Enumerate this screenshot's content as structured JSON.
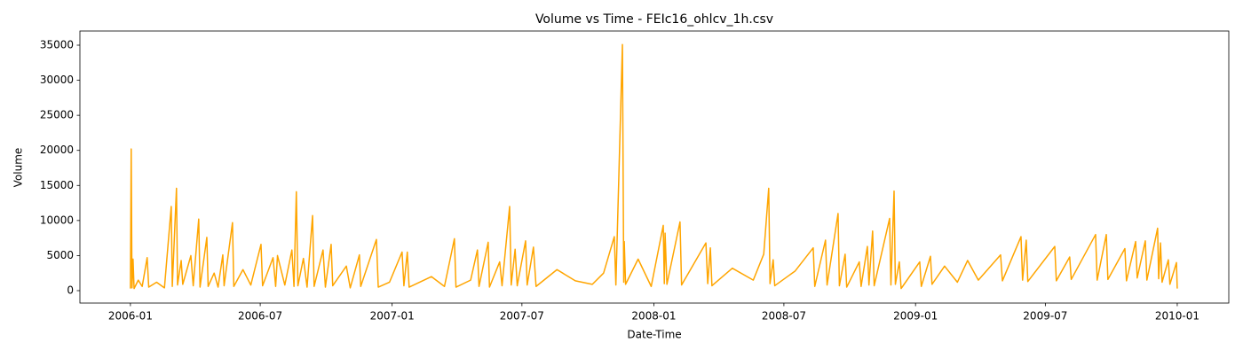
{
  "chart_data": {
    "type": "line",
    "title": "Volume vs Time - FEIc16_ohlcv_1h.csv",
    "xlabel": "Date-Time",
    "ylabel": "Volume",
    "x": [
      2006.0,
      2006.003,
      2006.006,
      2006.01,
      2006.014,
      2006.03,
      2006.045,
      2006.064,
      2006.07,
      2006.1,
      2006.13,
      2006.156,
      2006.16,
      2006.176,
      2006.18,
      2006.194,
      2006.2,
      2006.231,
      2006.24,
      2006.261,
      2006.266,
      2006.292,
      2006.297,
      2006.32,
      2006.335,
      2006.353,
      2006.358,
      2006.39,
      2006.395,
      2006.43,
      2006.46,
      2006.499,
      2006.505,
      2006.545,
      2006.555,
      2006.562,
      2006.59,
      2006.617,
      2006.625,
      2006.634,
      2006.64,
      2006.661,
      2006.675,
      2006.696,
      2006.702,
      2006.736,
      2006.745,
      2006.767,
      2006.773,
      2006.825,
      2006.84,
      2006.875,
      2006.88,
      2006.94,
      2006.947,
      2006.99,
      2007.038,
      2007.045,
      2007.058,
      2007.065,
      2007.15,
      2007.2,
      2007.238,
      2007.244,
      2007.3,
      2007.326,
      2007.332,
      2007.367,
      2007.372,
      2007.411,
      2007.42,
      2007.449,
      2007.455,
      2007.47,
      2007.478,
      2007.51,
      2007.516,
      2007.54,
      2007.55,
      2007.63,
      2007.7,
      2007.765,
      2007.808,
      2007.849,
      2007.855,
      2007.88,
      2007.885,
      2007.887,
      2007.892,
      2007.94,
      2007.99,
      2008.036,
      2008.04,
      2008.043,
      2008.05,
      2008.1,
      2008.106,
      2008.199,
      2008.206,
      2008.216,
      2008.222,
      2008.3,
      2008.38,
      2008.42,
      2008.439,
      2008.444,
      2008.456,
      2008.462,
      2008.54,
      2008.609,
      2008.615,
      2008.656,
      2008.662,
      2008.704,
      2008.709,
      2008.731,
      2008.737,
      2008.785,
      2008.792,
      2008.816,
      2008.822,
      2008.836,
      2008.842,
      2008.901,
      2008.906,
      2008.918,
      2008.923,
      2008.938,
      2008.945,
      2009.016,
      2009.022,
      2009.057,
      2009.063,
      2009.111,
      2009.16,
      2009.199,
      2009.24,
      2009.325,
      2009.332,
      2009.403,
      2009.409,
      2009.423,
      2009.429,
      2009.532,
      2009.538,
      2009.589,
      2009.595,
      2009.688,
      2009.694,
      2009.729,
      2009.735,
      2009.8,
      2009.806,
      2009.841,
      2009.847,
      2009.878,
      2009.884,
      2009.925,
      2009.929,
      2009.936,
      2009.942,
      2009.966,
      2009.972,
      2009.997,
      2010.0
    ],
    "series": [
      {
        "name": "Volume",
        "color": "#ffa500",
        "values": [
          300,
          20200,
          400,
          4500,
          300,
          1500,
          600,
          4700,
          500,
          1200,
          400,
          12000,
          600,
          14600,
          800,
          4300,
          900,
          5000,
          700,
          10200,
          500,
          7600,
          600,
          2500,
          500,
          5100,
          700,
          9700,
          600,
          3000,
          800,
          6600,
          700,
          4700,
          600,
          5000,
          800,
          5800,
          600,
          14100,
          700,
          4600,
          500,
          10700,
          600,
          5800,
          500,
          6600,
          700,
          3500,
          400,
          5100,
          600,
          7300,
          500,
          1200,
          5500,
          700,
          5500,
          500,
          2000,
          600,
          7400,
          500,
          1500,
          5800,
          600,
          6900,
          500,
          4100,
          700,
          12000,
          800,
          5900,
          700,
          7100,
          800,
          6200,
          600,
          3000,
          1400,
          900,
          2500,
          7700,
          800,
          35100,
          1200,
          7000,
          900,
          4500,
          600,
          9300,
          1000,
          8200,
          900,
          9800,
          800,
          6800,
          1000,
          6100,
          700,
          3200,
          1500,
          5200,
          14600,
          1000,
          4400,
          700,
          2800,
          6100,
          600,
          7200,
          800,
          11000,
          700,
          5200,
          500,
          4100,
          600,
          6300,
          800,
          8500,
          700,
          10300,
          800,
          14200,
          900,
          4100,
          300,
          4100,
          600,
          4900,
          900,
          3500,
          1200,
          4300,
          1500,
          5100,
          1400,
          7700,
          1500,
          7200,
          1300,
          6300,
          1400,
          4800,
          1600,
          8000,
          1500,
          8000,
          1600,
          6000,
          1400,
          7000,
          1800,
          7100,
          1500,
          8900,
          1700,
          6800,
          1200,
          4400,
          900,
          4000,
          300
        ]
      }
    ],
    "xlim": [
      2005.807,
      2010.197
    ],
    "xticks": [
      {
        "value": 2006.0,
        "label": "2006-01"
      },
      {
        "value": 2006.496,
        "label": "2006-07"
      },
      {
        "value": 2007.0,
        "label": "2007-01"
      },
      {
        "value": 2007.496,
        "label": "2007-07"
      },
      {
        "value": 2008.0,
        "label": "2008-01"
      },
      {
        "value": 2008.497,
        "label": "2008-07"
      },
      {
        "value": 2009.0,
        "label": "2009-01"
      },
      {
        "value": 2009.496,
        "label": "2009-07"
      },
      {
        "value": 2010.0,
        "label": "2010-01"
      }
    ],
    "ylim": [
      -1770,
      37020
    ],
    "yticks": [
      0,
      5000,
      10000,
      15000,
      20000,
      25000,
      30000,
      35000
    ]
  }
}
